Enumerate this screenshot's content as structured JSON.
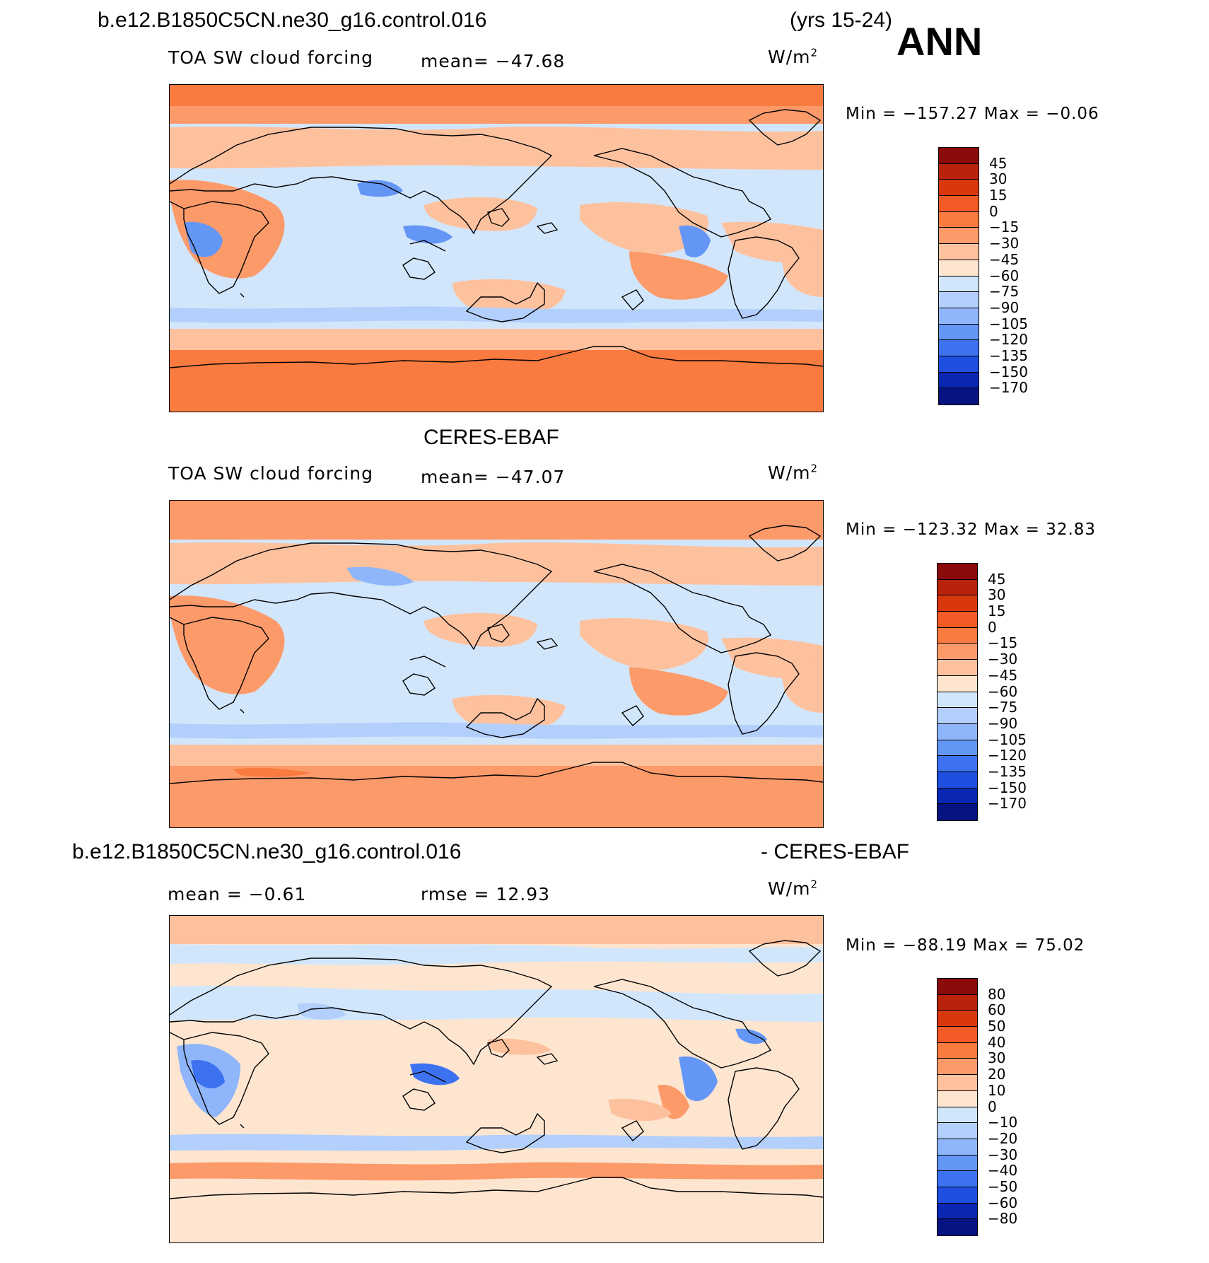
{
  "header": {
    "case_name": "b.e12.B1850C5CN.ne30_g16.control.016",
    "years": "(yrs 15-24)",
    "season": "ANN"
  },
  "panels": [
    {
      "id": "model",
      "field": "TOA SW cloud forcing",
      "stat": "mean= −47.68",
      "unit": "W/m",
      "unit_sup": "2",
      "minmax": "Min  =  −157.27  Max  =    −0.06",
      "colorbar_labels": [
        "45",
        "30",
        "15",
        "0",
        "−15",
        "−30",
        "−45",
        "−60",
        "−75",
        "−90",
        "−105",
        "−120",
        "−135",
        "−150",
        "−170"
      ],
      "colorbar_colors": [
        "#8b0a0a",
        "#b9220b",
        "#d9380f",
        "#f25a26",
        "#fa7b3f",
        "#fc9a6a",
        "#fdc19e",
        "#fde5d0",
        "#d2e6fb",
        "#b3cffb",
        "#8fb6fa",
        "#6496f6",
        "#3c72f0",
        "#1f4fe0",
        "#0a27b4",
        "#061380"
      ],
      "map_style": "model"
    },
    {
      "id": "obs",
      "title": "CERES-EBAF",
      "field": "TOA SW cloud forcing",
      "stat": "mean= −47.07",
      "unit": "W/m",
      "unit_sup": "2",
      "minmax": "Min  =  −123.32  Max  =    32.83",
      "colorbar_labels": [
        "45",
        "30",
        "15",
        "0",
        "−15",
        "−30",
        "−45",
        "−60",
        "−75",
        "−90",
        "−105",
        "−120",
        "−135",
        "−150",
        "−170"
      ],
      "colorbar_colors": [
        "#8b0a0a",
        "#b9220b",
        "#d9380f",
        "#f25a26",
        "#fa7b3f",
        "#fc9a6a",
        "#fdc19e",
        "#fde5d0",
        "#d2e6fb",
        "#b3cffb",
        "#8fb6fa",
        "#6496f6",
        "#3c72f0",
        "#1f4fe0",
        "#0a27b4",
        "#061380"
      ],
      "map_style": "obs"
    },
    {
      "id": "diff",
      "title_left": "b.e12.B1850C5CN.ne30_g16.control.016",
      "title_right": "- CERES-EBAF",
      "stat_mean": "mean  =    −0.61",
      "stat_rmse": "rmse  =    12.93",
      "unit": "W/m",
      "unit_sup": "2",
      "minmax": "Min  =  −88.19  Max  =    75.02",
      "colorbar_labels": [
        "80",
        "60",
        "50",
        "40",
        "30",
        "20",
        "10",
        "0",
        "−10",
        "−20",
        "−30",
        "−40",
        "−50",
        "−60",
        "−80"
      ],
      "colorbar_colors": [
        "#8b0a0a",
        "#b9220b",
        "#d9380f",
        "#f25a26",
        "#fa7b3f",
        "#fc9a6a",
        "#fdc19e",
        "#fde5d0",
        "#d2e6fb",
        "#b3cffb",
        "#8fb6fa",
        "#6496f6",
        "#3c72f0",
        "#1f4fe0",
        "#0a27b4",
        "#061380"
      ],
      "map_style": "diff"
    }
  ]
}
